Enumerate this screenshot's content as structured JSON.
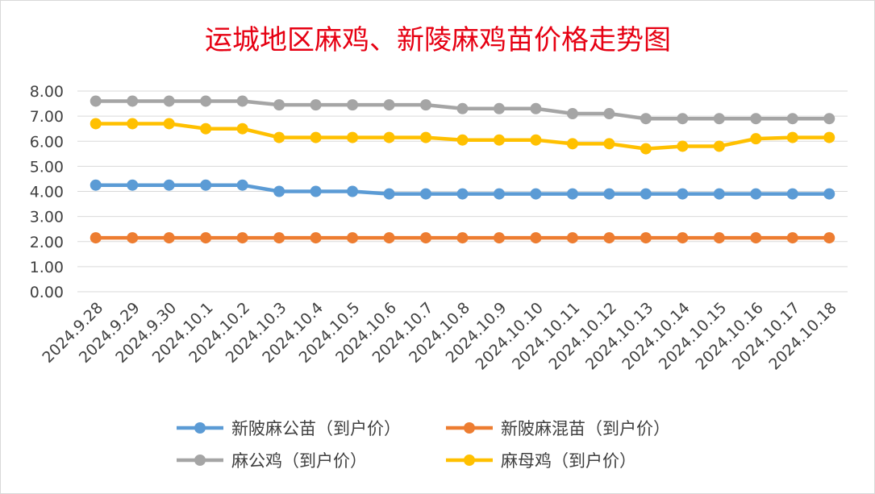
{
  "chart_data": {
    "type": "line",
    "title": "运城地区麻鸡、新陵麻鸡苗价格走势图",
    "xlabel": "",
    "ylabel": "",
    "ylim": [
      0,
      8
    ],
    "yticks": [
      "0.00",
      "1.00",
      "2.00",
      "3.00",
      "4.00",
      "5.00",
      "6.00",
      "7.00",
      "8.00"
    ],
    "grid": true,
    "legend_position": "bottom",
    "categories": [
      "2024.9.28",
      "2024.9.29",
      "2024.9.30",
      "2024.10.1",
      "2024.10.2",
      "2024.10.3",
      "2024.10.4",
      "2024.10.5",
      "2024.10.6",
      "2024.10.7",
      "2024.10.8",
      "2024.10.9",
      "2024.10.10",
      "2024.10.11",
      "2024.10.12",
      "2024.10.13",
      "2024.10.14",
      "2024.10.15",
      "2024.10.16",
      "2024.10.17",
      "2024.10.18"
    ],
    "series": [
      {
        "name": "新陂麻公苗（到户价）",
        "color": "#5b9bd5",
        "values": [
          4.25,
          4.25,
          4.25,
          4.25,
          4.25,
          4.0,
          4.0,
          4.0,
          3.9,
          3.9,
          3.9,
          3.9,
          3.9,
          3.9,
          3.9,
          3.9,
          3.9,
          3.9,
          3.9,
          3.9,
          3.9
        ]
      },
      {
        "name": "新陂麻混苗（到户价）",
        "color": "#ed7d31",
        "values": [
          2.15,
          2.15,
          2.15,
          2.15,
          2.15,
          2.15,
          2.15,
          2.15,
          2.15,
          2.15,
          2.15,
          2.15,
          2.15,
          2.15,
          2.15,
          2.15,
          2.15,
          2.15,
          2.15,
          2.15,
          2.15
        ]
      },
      {
        "name": "麻公鸡（到户价）",
        "color": "#a5a5a5",
        "values": [
          7.6,
          7.6,
          7.6,
          7.6,
          7.6,
          7.45,
          7.45,
          7.45,
          7.45,
          7.45,
          7.3,
          7.3,
          7.3,
          7.1,
          7.1,
          6.9,
          6.9,
          6.9,
          6.9,
          6.9,
          6.9
        ]
      },
      {
        "name": "麻母鸡（到户价）",
        "color": "#ffc000",
        "values": [
          6.7,
          6.7,
          6.7,
          6.5,
          6.5,
          6.15,
          6.15,
          6.15,
          6.15,
          6.15,
          6.05,
          6.05,
          6.05,
          5.9,
          5.9,
          5.7,
          5.8,
          5.8,
          6.1,
          6.15,
          6.15
        ]
      }
    ]
  }
}
